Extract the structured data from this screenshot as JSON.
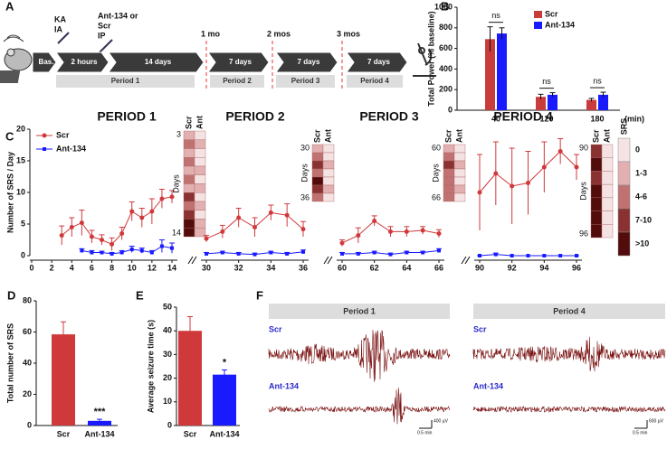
{
  "panel_a": {
    "label": "A",
    "steps": [
      "Bas.",
      "2 hours",
      "14 days",
      "7 days",
      "7 days",
      "7 days"
    ],
    "injection_1": [
      "KA",
      "IA"
    ],
    "injection_2": [
      "Ant-134 or",
      "Scr",
      "IP"
    ],
    "timepoints": [
      "1 mo",
      "2 mos",
      "3 mos"
    ],
    "periods": [
      "Period 1",
      "Period 2",
      "Period 3",
      "Period 4"
    ]
  },
  "chart_data": [
    {
      "type": "bar",
      "panel_label": "B",
      "ylabel": "Total Power (% baseline)",
      "xlabel": "(min)",
      "categories": [
        "40",
        "120",
        "180"
      ],
      "series": [
        {
          "name": "Scr",
          "color": "#c83c3c",
          "values": [
            690,
            130,
            100
          ],
          "errors": [
            120,
            25,
            15
          ]
        },
        {
          "name": "Ant-134",
          "color": "#1a1aff",
          "values": [
            745,
            150,
            150
          ],
          "errors": [
            55,
            20,
            25
          ]
        }
      ],
      "annotations": [
        "ns",
        "ns",
        "ns"
      ],
      "ylim": [
        0,
        1000
      ],
      "yticks": [
        0,
        200,
        400,
        600,
        800,
        1000
      ],
      "legend": "upper right"
    },
    {
      "type": "line",
      "panel_label": "C",
      "ylabel": "Number of SRS / Day",
      "ylim": [
        0,
        20
      ],
      "yticks": [
        0,
        5,
        10,
        15,
        20
      ],
      "legend": "upper left",
      "segments": [
        {
          "title": "PERIOD 1",
          "xlim": [
            0,
            14
          ],
          "xticks": [
            0,
            2,
            4,
            6,
            8,
            10,
            12,
            14
          ],
          "x": [
            3,
            4,
            5,
            6,
            7,
            8,
            9,
            10,
            11,
            12,
            13,
            14
          ],
          "heatmap": {
            "columns": [
              "Scr",
              "Ant"
            ],
            "first_day": "3",
            "last_day": "14",
            "axis_label": "Days",
            "cells": [
              [
                "1-3",
                "0"
              ],
              [
                "4-6",
                "1-3"
              ],
              [
                "1-3",
                "0"
              ],
              [
                "4-6",
                "0"
              ],
              [
                "1-3",
                "1-3"
              ],
              [
                "4-6",
                "0"
              ],
              [
                "1-3",
                "1-3"
              ],
              [
                "7-10",
                "0"
              ],
              [
                "4-6",
                "1-3"
              ],
              [
                "7-10",
                "0"
              ],
              [
                ">10",
                "1-3"
              ],
              [
                ">10",
                "1-3"
              ]
            ]
          }
        },
        {
          "title": "PERIOD 2",
          "xlim": [
            30,
            36
          ],
          "xticks": [
            30,
            32,
            34,
            36
          ],
          "x": [
            30,
            31,
            32,
            33,
            34,
            35,
            36
          ],
          "heatmap": {
            "columns": [
              "Scr",
              "Ant"
            ],
            "first_day": "30",
            "last_day": "36",
            "axis_label": "Days",
            "cells": [
              [
                "1-3",
                "0"
              ],
              [
                "4-6",
                "0"
              ],
              [
                "7-10",
                "1-3"
              ],
              [
                "4-6",
                "0"
              ],
              [
                ">10",
                "0"
              ],
              [
                "7-10",
                "1-3"
              ],
              [
                "4-6",
                "0"
              ]
            ]
          }
        },
        {
          "title": "PERIOD 3",
          "xlim": [
            60,
            66
          ],
          "xticks": [
            60,
            62,
            64,
            66
          ],
          "x": [
            60,
            61,
            62,
            63,
            64,
            65,
            66
          ],
          "heatmap": {
            "columns": [
              "Scr",
              "Ant"
            ],
            "first_day": "60",
            "last_day": "66",
            "axis_label": "Days",
            "cells": [
              [
                "1-3",
                "0"
              ],
              [
                "4-6",
                "0"
              ],
              [
                "7-10",
                "1-3"
              ],
              [
                "4-6",
                "0"
              ],
              [
                "4-6",
                "0"
              ],
              [
                "4-6",
                "1-3"
              ],
              [
                "4-6",
                "0"
              ]
            ]
          }
        },
        {
          "title": "PERIOD 4",
          "xlim": [
            90,
            96
          ],
          "xticks": [
            90,
            92,
            94,
            96
          ],
          "x": [
            90,
            91,
            92,
            93,
            94,
            95,
            96
          ],
          "heatmap": {
            "columns": [
              "Scr",
              "Ant"
            ],
            "first_day": "90",
            "last_day": "96",
            "axis_label": "Days",
            "cells": [
              [
                "7-10",
                "0"
              ],
              [
                ">10",
                "0"
              ],
              [
                "7-10",
                "0"
              ],
              [
                ">10",
                "0"
              ],
              [
                ">10",
                "0"
              ],
              [
                ">10",
                "0"
              ],
              [
                ">10",
                "0"
              ]
            ]
          }
        }
      ],
      "series": [
        {
          "name": "Scr",
          "color": "#d0393c",
          "values": [
            [
              3.2,
              4.5,
              5.2,
              3.0,
              2.5,
              1.8,
              3.5,
              7.0,
              6.0,
              7.0,
              9.0,
              9.3
            ],
            [
              2.7,
              3.8,
              6.0,
              4.5,
              6.8,
              6.4,
              4.2
            ],
            [
              2.0,
              3.2,
              5.5,
              3.8,
              3.8,
              4.0,
              3.5
            ],
            [
              10,
              13,
              11,
              11.5,
              14,
              16.5,
              14
            ]
          ],
          "errors": [
            [
              1.5,
              1.5,
              2,
              1,
              0.8,
              1,
              1,
              1.5,
              1.5,
              2,
              1.5,
              1
            ],
            [
              0.5,
              1,
              1.5,
              1.5,
              1.2,
              1.8,
              1.2
            ],
            [
              0.5,
              1.2,
              0.8,
              0.8,
              0.8,
              0.6,
              0.6
            ],
            [
              6,
              5,
              6,
              5,
              4,
              2,
              2
            ]
          ]
        },
        {
          "name": "Ant-134",
          "color": "#1a1aff",
          "values": [
            [
              null,
              null,
              0.8,
              0.5,
              0.5,
              0.3,
              0.5,
              1.0,
              0.8,
              0.5,
              1.5,
              1.2
            ],
            [
              0.3,
              0.5,
              0.3,
              0.2,
              0.5,
              0.3,
              0.6
            ],
            [
              0.3,
              0.3,
              0.5,
              0.2,
              0.5,
              0.5,
              0.8
            ],
            [
              0,
              0.2,
              0,
              0,
              0,
              0,
              0
            ]
          ],
          "errors": [
            [
              null,
              null,
              0.3,
              0.3,
              0.2,
              0.2,
              0.3,
              0.5,
              0.4,
              0.3,
              1,
              0.8
            ],
            [
              0.2,
              0.2,
              0.2,
              0.2,
              0.2,
              0.2,
              0.3
            ],
            [
              0.2,
              0.2,
              0.2,
              0.2,
              0.2,
              0.2,
              0.3
            ],
            [
              0,
              0.2,
              0,
              0,
              0,
              0,
              0
            ]
          ]
        }
      ],
      "heatmap_legend": {
        "title": "SRS",
        "labels": [
          "0",
          "1-3",
          "4-6",
          "7-10",
          ">10"
        ],
        "colors": [
          "#f5e3e3",
          "#e2b0b0",
          "#c07272",
          "#8a3232",
          "#520c0c"
        ]
      }
    },
    {
      "type": "bar",
      "panel_label": "D",
      "ylabel": "Total number of SRS",
      "categories": [
        "Scr",
        "Ant-134"
      ],
      "values": [
        58.5,
        3
      ],
      "errors": [
        8,
        1
      ],
      "colors": [
        "#d0393c",
        "#1a1aff"
      ],
      "annotations": [
        null,
        "***"
      ],
      "ylim": [
        0,
        80
      ],
      "yticks": [
        0,
        20,
        40,
        60,
        80
      ]
    },
    {
      "type": "bar",
      "panel_label": "E",
      "ylabel": "Average seizure time (s)",
      "categories": [
        "Scr",
        "Ant-134"
      ],
      "values": [
        40,
        21.5
      ],
      "errors": [
        6,
        2
      ],
      "colors": [
        "#d0393c",
        "#1a1aff"
      ],
      "annotations": [
        null,
        "*"
      ],
      "ylim": [
        0,
        50
      ],
      "yticks": [
        0,
        10,
        20,
        30,
        40,
        50
      ]
    }
  ],
  "panel_f": {
    "label": "F",
    "panels": [
      {
        "title": "Period 1",
        "rows": [
          "Scr",
          "Ant-134"
        ],
        "amplitude": "400 µV",
        "time": "0.5 min"
      },
      {
        "title": "Period 4",
        "rows": [
          "Scr",
          "Ant-134"
        ],
        "amplitude": "600 µV",
        "time": "0.5 min"
      }
    ]
  }
}
